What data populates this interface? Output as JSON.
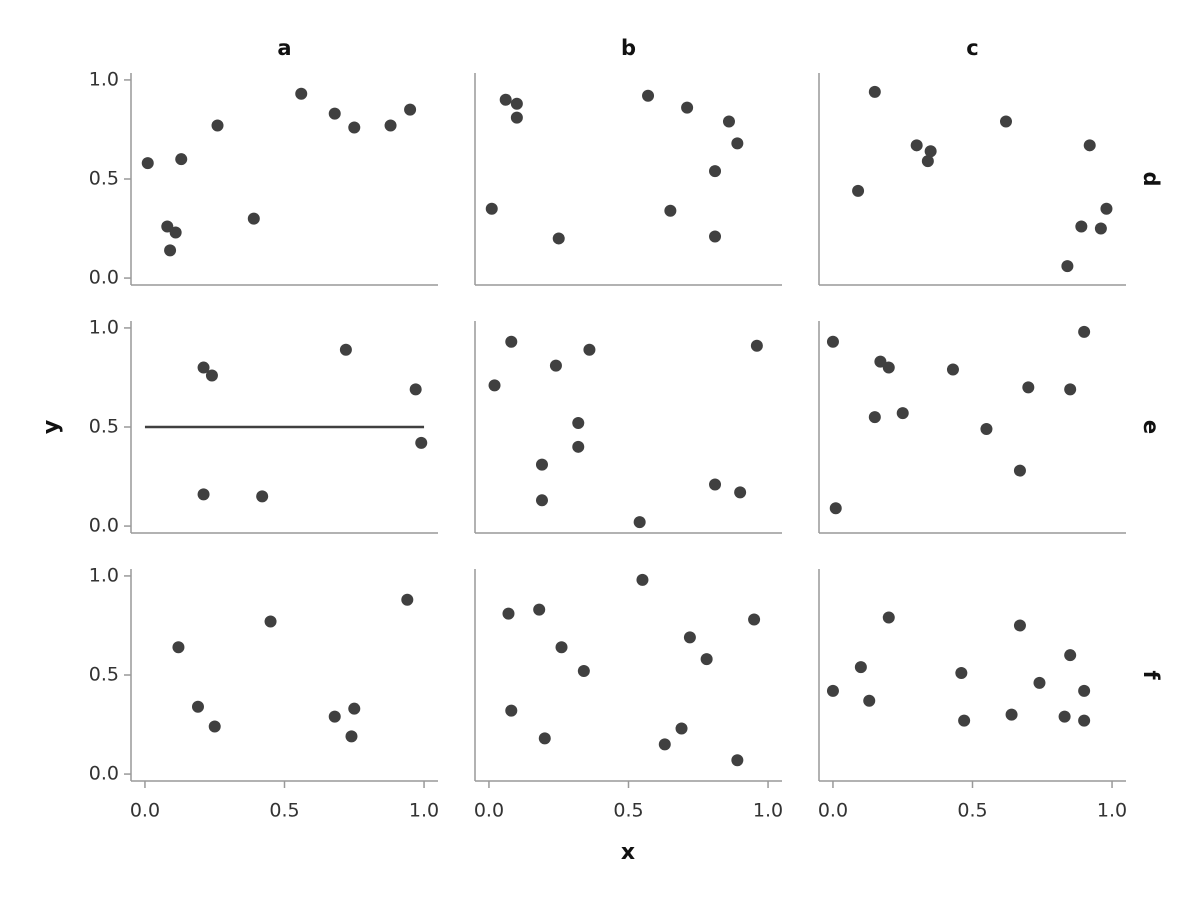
{
  "chart_data": {
    "type": "scatter",
    "x_label": "x",
    "y_label": "y",
    "columns": [
      "a",
      "b",
      "c"
    ],
    "rows": [
      "d",
      "e",
      "f"
    ],
    "xlim": [
      -0.05,
      1.05
    ],
    "ylim": [
      -0.035,
      1.035
    ],
    "xticks": [
      {
        "value": 0,
        "label": "0.0"
      },
      0.5,
      {
        "value": 1,
        "label": "1.0"
      }
    ],
    "yticks": [
      {
        "value": 0,
        "label": "0.0"
      },
      0.5,
      {
        "value": 1,
        "label": "1.0"
      }
    ],
    "color": "#404040",
    "panels": [
      {
        "x": [
          0.01,
          0.08,
          0.11,
          0.09,
          0.13,
          0.26,
          0.39,
          0.56,
          0.68,
          0.75,
          0.88,
          0.95
        ],
        "y": [
          0.58,
          0.26,
          0.23,
          0.14,
          0.6,
          0.77,
          0.3,
          0.93,
          0.83,
          0.76,
          0.77,
          0.85
        ]
      },
      {
        "x": [
          0.01,
          0.06,
          0.1,
          0.1,
          0.25,
          0.57,
          0.71,
          0.65,
          0.86,
          0.89,
          0.81,
          0.81
        ],
        "y": [
          0.35,
          0.9,
          0.88,
          0.81,
          0.2,
          0.92,
          0.86,
          0.34,
          0.79,
          0.68,
          0.54,
          0.21
        ]
      },
      {
        "x": [
          0.09,
          0.15,
          0.3,
          0.34,
          0.35,
          0.62,
          0.92,
          0.89,
          0.98,
          0.96,
          0.84
        ],
        "y": [
          0.44,
          0.94,
          0.67,
          0.59,
          0.64,
          0.79,
          0.67,
          0.26,
          0.35,
          0.25,
          0.06
        ]
      },
      {
        "x": [
          0.21,
          0.24,
          0.72,
          0.97,
          0.99,
          0.21,
          0.42
        ],
        "y": [
          0.8,
          0.76,
          0.89,
          0.69,
          0.42,
          0.16,
          0.15
        ],
        "lines": [
          {
            "x": [
              0,
              1
            ],
            "y": [
              0.5,
              0.5
            ]
          }
        ]
      },
      {
        "x": [
          0.02,
          0.08,
          0.24,
          0.36,
          0.32,
          0.32,
          0.19,
          0.19,
          0.54,
          0.81,
          0.9,
          0.96
        ],
        "y": [
          0.71,
          0.93,
          0.81,
          0.89,
          0.52,
          0.4,
          0.31,
          0.13,
          0.02,
          0.21,
          0.17,
          0.91
        ]
      },
      {
        "x": [
          0.0,
          0.01,
          0.17,
          0.2,
          0.15,
          0.25,
          0.43,
          0.55,
          0.7,
          0.67,
          0.85,
          0.9
        ],
        "y": [
          0.93,
          0.09,
          0.83,
          0.8,
          0.55,
          0.57,
          0.79,
          0.49,
          0.7,
          0.28,
          0.69,
          0.98
        ]
      },
      {
        "x": [
          0.12,
          0.19,
          0.25,
          0.45,
          0.68,
          0.75,
          0.74,
          0.94
        ],
        "y": [
          0.64,
          0.34,
          0.24,
          0.77,
          0.29,
          0.33,
          0.19,
          0.88
        ]
      },
      {
        "x": [
          0.07,
          0.08,
          0.18,
          0.26,
          0.2,
          0.34,
          0.55,
          0.72,
          0.78,
          0.63,
          0.69,
          0.95,
          0.89
        ],
        "y": [
          0.81,
          0.32,
          0.83,
          0.64,
          0.18,
          0.52,
          0.98,
          0.69,
          0.58,
          0.15,
          0.23,
          0.78,
          0.07
        ]
      },
      {
        "x": [
          0.0,
          0.1,
          0.13,
          0.2,
          0.46,
          0.47,
          0.64,
          0.67,
          0.74,
          0.85,
          0.83,
          0.9,
          0.9
        ],
        "y": [
          0.42,
          0.54,
          0.37,
          0.79,
          0.51,
          0.27,
          0.3,
          0.75,
          0.46,
          0.6,
          0.29,
          0.42,
          0.27
        ]
      }
    ]
  }
}
